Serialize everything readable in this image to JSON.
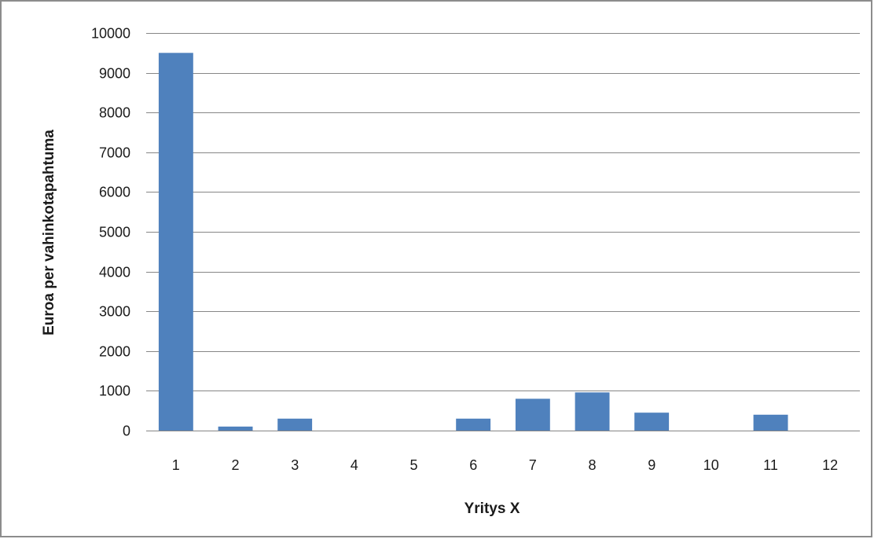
{
  "chart_data": {
    "type": "bar",
    "categories": [
      "1",
      "2",
      "3",
      "4",
      "5",
      "6",
      "7",
      "8",
      "9",
      "10",
      "11",
      "12"
    ],
    "values": [
      9500,
      100,
      300,
      0,
      0,
      300,
      800,
      960,
      450,
      0,
      400,
      0
    ],
    "xlabel": "Yritys X",
    "ylabel": "Euroa per vahinkotapahtuma",
    "ylim": [
      0,
      10000
    ],
    "yticks": [
      0,
      1000,
      2000,
      3000,
      4000,
      5000,
      6000,
      7000,
      8000,
      9000,
      10000
    ],
    "grid": true,
    "bar_color": "#4f81bd",
    "grid_color": "#868686"
  }
}
